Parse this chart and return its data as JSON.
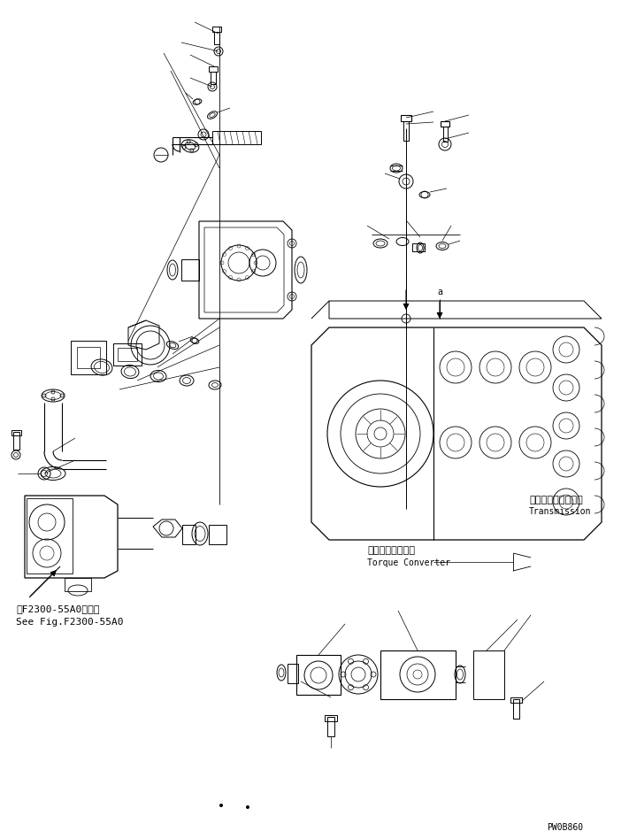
{
  "bg_color": "#ffffff",
  "line_color": "#000000",
  "fig_width": 7.11,
  "fig_height": 9.48,
  "dpi": 100,
  "watermark": "PW0B860",
  "label_torque_converter_jp": "トルクコンバータ",
  "label_torque_converter_en": "Torque Converter",
  "label_transmission_jp": "トランスミッション",
  "label_transmission_en": "Transmission",
  "label_see_fig_jp": "第F2300-55A0図参照",
  "label_see_fig_en": "See Fig.F2300-55A0",
  "font_size_small": 7,
  "font_size_medium": 8
}
